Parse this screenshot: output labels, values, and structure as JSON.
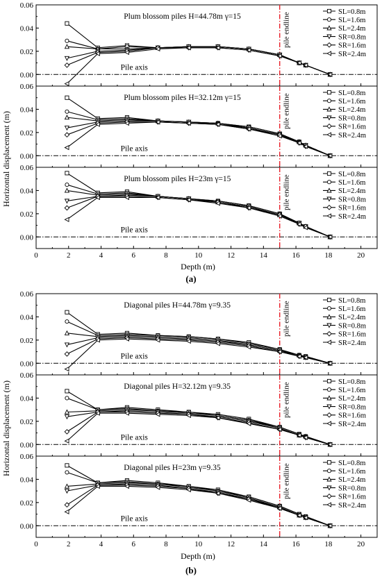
{
  "figure": {
    "panel_a_label": "(a)",
    "panel_b_label": "(b)",
    "ylabel": "Horizontal displacement (m)",
    "xlabel": "Depth (m)",
    "endline_label": "pile endline",
    "axis_label": "Pile axis",
    "x_ticks": [
      "0",
      "2",
      "4",
      "6",
      "8",
      "10",
      "12",
      "14",
      "16",
      "18",
      "20"
    ],
    "y_ticks": [
      "0.00",
      "0.02",
      "0.04",
      "0.06"
    ],
    "colors": {
      "endline": "#e8202a",
      "lines": "#000000"
    }
  },
  "chart_data": [
    {
      "type": "line",
      "group": "a",
      "title": "Plum blossom piles  H=44.78m   γ=15",
      "xlim": [
        0,
        21
      ],
      "ylim": [
        -0.01,
        0.06
      ],
      "endline_x": 15,
      "legend": "top-right",
      "grid": false,
      "x": [
        1.9,
        3.8,
        5.6,
        7.5,
        9.4,
        11.2,
        13.1,
        15.0,
        16.2,
        16.6,
        18.1
      ],
      "series": [
        {
          "name": "SL=0.8m",
          "values": [
            0.044,
            0.023,
            0.025,
            0.023,
            0.024,
            0.024,
            0.022,
            0.017,
            0.01,
            0.008,
            0.0
          ]
        },
        {
          "name": "SL=1.6m",
          "values": [
            0.029,
            0.022,
            0.024,
            0.023,
            0.024,
            0.024,
            0.022,
            0.017,
            0.01,
            0.008,
            0.0
          ]
        },
        {
          "name": "SL=2.4m",
          "values": [
            0.024,
            0.022,
            0.022,
            0.023,
            0.024,
            0.024,
            0.022,
            0.017,
            0.01,
            0.008,
            0.0
          ]
        },
        {
          "name": "SR=0.8m",
          "values": [
            0.014,
            0.02,
            0.021,
            0.023,
            0.024,
            0.024,
            0.022,
            0.017,
            0.01,
            0.008,
            0.0
          ]
        },
        {
          "name": "SR=1.6m",
          "values": [
            0.008,
            0.019,
            0.02,
            0.023,
            0.023,
            0.023,
            0.021,
            0.016,
            0.01,
            0.008,
            0.0
          ]
        },
        {
          "name": "SR=2.4m",
          "values": [
            -0.008,
            0.018,
            0.019,
            0.022,
            0.023,
            0.023,
            0.021,
            0.016,
            0.01,
            0.008,
            0.0
          ]
        }
      ]
    },
    {
      "type": "line",
      "group": "a",
      "title": "Plum blossom piles  H=32.12m   γ=15",
      "xlim": [
        0,
        21
      ],
      "ylim": [
        -0.01,
        0.06
      ],
      "endline_x": 15,
      "legend": "top-right",
      "grid": false,
      "x": [
        1.9,
        3.8,
        5.6,
        7.5,
        9.4,
        11.2,
        13.1,
        15.0,
        16.2,
        16.6,
        18.1
      ],
      "series": [
        {
          "name": "SL=0.8m",
          "values": [
            0.05,
            0.032,
            0.033,
            0.03,
            0.029,
            0.028,
            0.025,
            0.019,
            0.012,
            0.009,
            0.0
          ]
        },
        {
          "name": "SL=1.6m",
          "values": [
            0.038,
            0.031,
            0.032,
            0.03,
            0.029,
            0.028,
            0.025,
            0.019,
            0.012,
            0.009,
            0.0
          ]
        },
        {
          "name": "SL=2.4m",
          "values": [
            0.033,
            0.03,
            0.031,
            0.03,
            0.029,
            0.028,
            0.024,
            0.018,
            0.012,
            0.009,
            0.0
          ]
        },
        {
          "name": "SR=0.8m",
          "values": [
            0.024,
            0.029,
            0.03,
            0.03,
            0.029,
            0.027,
            0.024,
            0.018,
            0.011,
            0.009,
            0.0
          ]
        },
        {
          "name": "SR=1.6m",
          "values": [
            0.018,
            0.028,
            0.029,
            0.029,
            0.028,
            0.027,
            0.023,
            0.018,
            0.011,
            0.008,
            0.0
          ]
        },
        {
          "name": "SR=2.4m",
          "values": [
            0.007,
            0.027,
            0.028,
            0.029,
            0.028,
            0.027,
            0.023,
            0.017,
            0.011,
            0.008,
            0.0
          ]
        }
      ]
    },
    {
      "type": "line",
      "group": "a",
      "title": "Plum blossom piles  H=23m   γ=15",
      "xlim": [
        0,
        21
      ],
      "ylim": [
        -0.01,
        0.06
      ],
      "endline_x": 15,
      "legend": "top-right",
      "grid": false,
      "x": [
        1.9,
        3.8,
        5.6,
        7.5,
        9.4,
        11.2,
        13.1,
        15.0,
        16.2,
        16.6,
        18.1
      ],
      "series": [
        {
          "name": "SL=0.8m",
          "values": [
            0.055,
            0.038,
            0.039,
            0.035,
            0.033,
            0.031,
            0.027,
            0.02,
            0.012,
            0.009,
            0.0
          ]
        },
        {
          "name": "SL=1.6m",
          "values": [
            0.045,
            0.037,
            0.038,
            0.035,
            0.033,
            0.031,
            0.027,
            0.02,
            0.012,
            0.009,
            0.0
          ]
        },
        {
          "name": "SL=2.4m",
          "values": [
            0.04,
            0.036,
            0.037,
            0.035,
            0.033,
            0.03,
            0.026,
            0.019,
            0.012,
            0.009,
            0.0
          ]
        },
        {
          "name": "SR=0.8m",
          "values": [
            0.031,
            0.035,
            0.036,
            0.035,
            0.033,
            0.03,
            0.026,
            0.019,
            0.012,
            0.009,
            0.0
          ]
        },
        {
          "name": "SR=1.6m",
          "values": [
            0.025,
            0.035,
            0.035,
            0.034,
            0.032,
            0.03,
            0.025,
            0.019,
            0.011,
            0.009,
            0.0
          ]
        },
        {
          "name": "SR=2.4m",
          "values": [
            0.015,
            0.034,
            0.034,
            0.034,
            0.032,
            0.029,
            0.025,
            0.018,
            0.011,
            0.008,
            0.0
          ]
        }
      ]
    },
    {
      "type": "line",
      "group": "b",
      "title": "Diagonal piles   H=44.78m   γ=9.35",
      "xlim": [
        0,
        21
      ],
      "ylim": [
        -0.01,
        0.06
      ],
      "endline_x": 15,
      "legend": "top-right",
      "grid": false,
      "x": [
        1.9,
        3.8,
        5.6,
        7.5,
        9.4,
        11.2,
        13.1,
        15.0,
        16.2,
        16.6,
        18.1
      ],
      "series": [
        {
          "name": "SL=0.8m",
          "values": [
            0.044,
            0.025,
            0.026,
            0.024,
            0.023,
            0.021,
            0.018,
            0.012,
            0.007,
            0.006,
            0.0
          ]
        },
        {
          "name": "SL=1.6m",
          "values": [
            0.036,
            0.024,
            0.025,
            0.024,
            0.023,
            0.021,
            0.017,
            0.012,
            0.007,
            0.006,
            0.0
          ]
        },
        {
          "name": "SL=2.4m",
          "values": [
            0.026,
            0.023,
            0.024,
            0.023,
            0.022,
            0.02,
            0.016,
            0.011,
            0.007,
            0.005,
            0.0
          ]
        },
        {
          "name": "SR=0.8m",
          "values": [
            0.016,
            0.022,
            0.023,
            0.022,
            0.021,
            0.019,
            0.016,
            0.011,
            0.006,
            0.005,
            0.0
          ]
        },
        {
          "name": "SR=1.6m",
          "values": [
            0.008,
            0.021,
            0.022,
            0.021,
            0.02,
            0.018,
            0.015,
            0.01,
            0.006,
            0.005,
            0.0
          ]
        },
        {
          "name": "SR=2.4m",
          "values": [
            -0.005,
            0.02,
            0.021,
            0.02,
            0.019,
            0.017,
            0.014,
            0.01,
            0.006,
            0.005,
            0.0
          ]
        }
      ]
    },
    {
      "type": "line",
      "group": "b",
      "title": "Diagonal piles   H=32.12m   γ=9.35",
      "xlim": [
        0,
        21
      ],
      "ylim": [
        -0.01,
        0.06
      ],
      "endline_x": 15,
      "legend": "top-right",
      "grid": false,
      "x": [
        1.9,
        3.8,
        5.6,
        7.5,
        9.4,
        11.2,
        13.1,
        15.0,
        16.2,
        16.6,
        18.1
      ],
      "series": [
        {
          "name": "SL=0.8m",
          "values": [
            0.046,
            0.03,
            0.032,
            0.03,
            0.028,
            0.026,
            0.022,
            0.015,
            0.009,
            0.007,
            0.0
          ]
        },
        {
          "name": "SL=1.6m",
          "values": [
            0.04,
            0.03,
            0.031,
            0.029,
            0.028,
            0.025,
            0.021,
            0.015,
            0.009,
            0.007,
            0.0
          ]
        },
        {
          "name": "SL=2.4m",
          "values": [
            0.028,
            0.029,
            0.03,
            0.029,
            0.027,
            0.025,
            0.021,
            0.014,
            0.008,
            0.007,
            0.0
          ]
        },
        {
          "name": "SR=0.8m",
          "values": [
            0.024,
            0.028,
            0.029,
            0.028,
            0.026,
            0.024,
            0.02,
            0.014,
            0.008,
            0.006,
            0.0
          ]
        },
        {
          "name": "SR=1.6m",
          "values": [
            0.011,
            0.028,
            0.028,
            0.027,
            0.026,
            0.023,
            0.019,
            0.013,
            0.008,
            0.006,
            0.0
          ]
        },
        {
          "name": "SR=2.4m",
          "values": [
            0.003,
            0.027,
            0.027,
            0.026,
            0.025,
            0.023,
            0.018,
            0.013,
            0.008,
            0.006,
            0.0
          ]
        }
      ]
    },
    {
      "type": "line",
      "group": "b",
      "title": "Diagonal piles   H=23m   γ=9.35",
      "xlim": [
        0,
        21
      ],
      "ylim": [
        -0.01,
        0.06
      ],
      "endline_x": 15,
      "legend": "top-right",
      "grid": false,
      "x": [
        1.9,
        3.8,
        5.6,
        7.5,
        9.4,
        11.2,
        13.1,
        15.0,
        16.2,
        16.6,
        18.1
      ],
      "series": [
        {
          "name": "SL=0.8m",
          "values": [
            0.052,
            0.037,
            0.039,
            0.037,
            0.034,
            0.031,
            0.025,
            0.017,
            0.01,
            0.008,
            0.0
          ]
        },
        {
          "name": "SL=1.6m",
          "values": [
            0.046,
            0.037,
            0.038,
            0.036,
            0.034,
            0.03,
            0.025,
            0.017,
            0.01,
            0.008,
            0.0
          ]
        },
        {
          "name": "SL=2.4m",
          "values": [
            0.034,
            0.036,
            0.037,
            0.036,
            0.033,
            0.03,
            0.024,
            0.016,
            0.009,
            0.007,
            0.0
          ]
        },
        {
          "name": "SR=0.8m",
          "values": [
            0.03,
            0.035,
            0.036,
            0.035,
            0.032,
            0.029,
            0.023,
            0.016,
            0.009,
            0.007,
            0.0
          ]
        },
        {
          "name": "SR=1.6m",
          "values": [
            0.018,
            0.035,
            0.035,
            0.034,
            0.032,
            0.028,
            0.023,
            0.015,
            0.009,
            0.007,
            0.0
          ]
        },
        {
          "name": "SR=2.4m",
          "values": [
            0.012,
            0.034,
            0.034,
            0.033,
            0.031,
            0.028,
            0.022,
            0.015,
            0.009,
            0.007,
            0.0
          ]
        }
      ]
    }
  ]
}
